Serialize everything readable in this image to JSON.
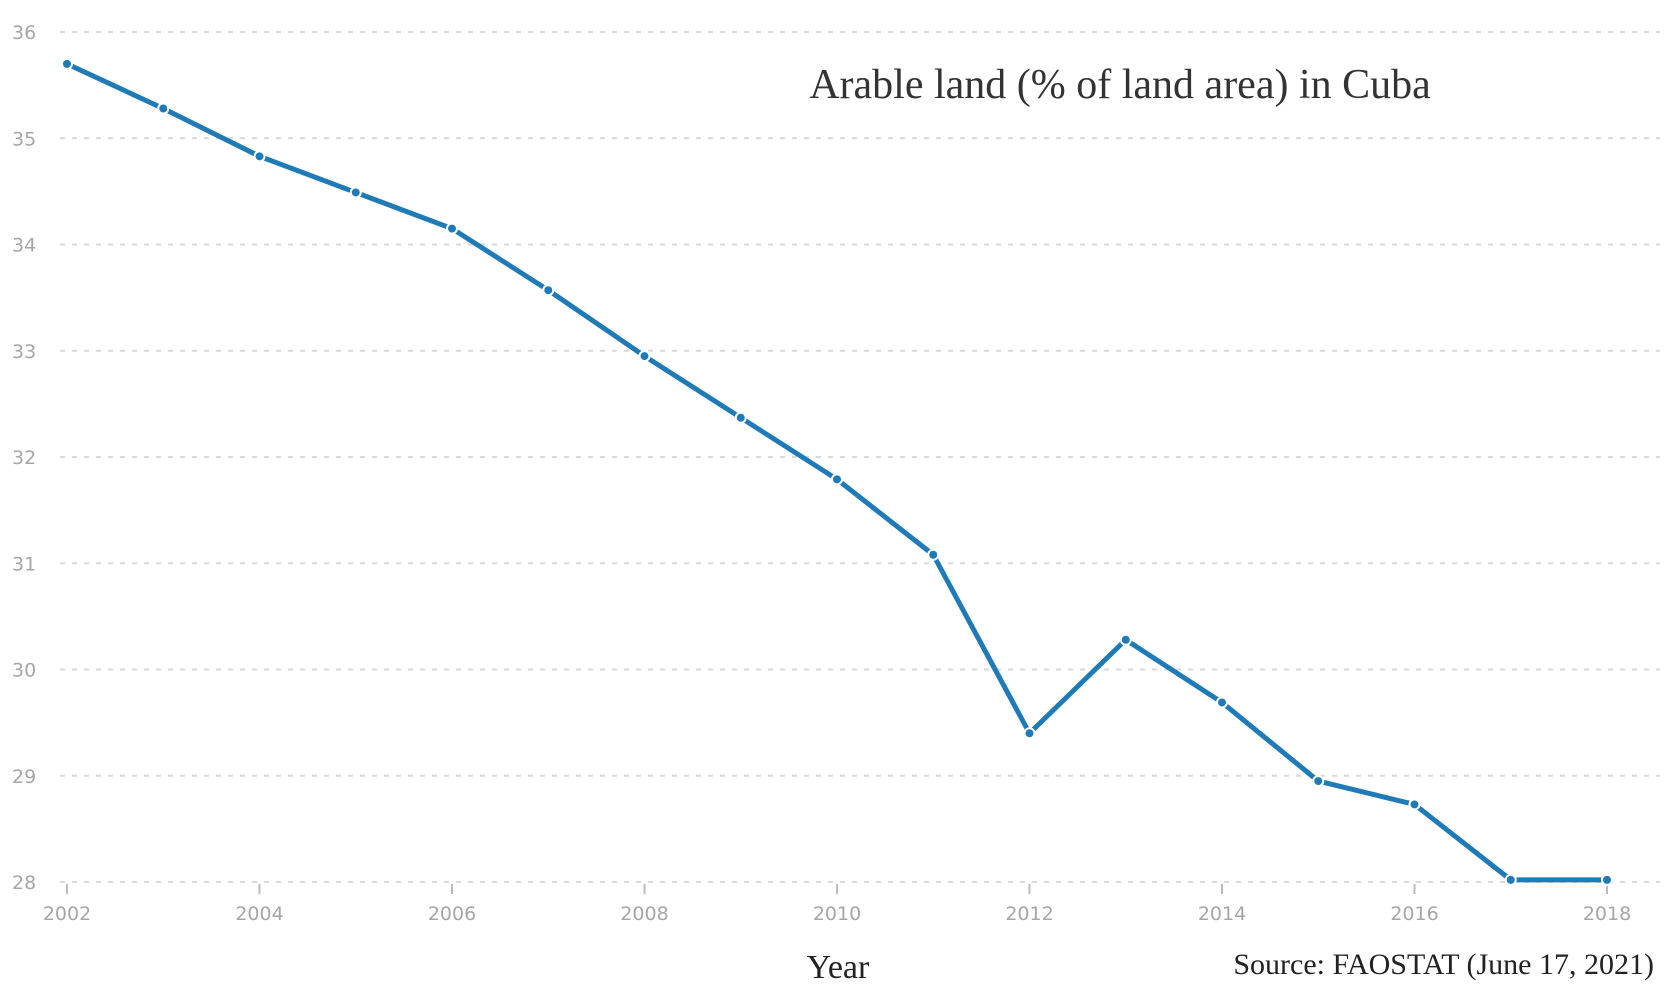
{
  "chart_data": {
    "type": "line",
    "title": "Arable land (% of land area) in Cuba",
    "xlabel": "Year",
    "ylabel": "",
    "source": "Source: FAOSTAT (June 17, 2021)",
    "x": [
      2002,
      2003,
      2004,
      2005,
      2006,
      2007,
      2008,
      2009,
      2010,
      2011,
      2012,
      2013,
      2014,
      2015,
      2016,
      2017,
      2018
    ],
    "values": [
      35.7,
      35.28,
      34.83,
      34.49,
      34.15,
      33.57,
      32.95,
      32.37,
      31.79,
      31.08,
      29.4,
      30.28,
      29.69,
      28.95,
      28.73,
      28.02,
      28.02
    ],
    "xlim": [
      2002,
      2018
    ],
    "ylim": [
      28,
      36
    ],
    "xticks": [
      "2002",
      "2004",
      "2006",
      "2008",
      "2010",
      "2012",
      "2014",
      "2016",
      "2018"
    ],
    "yticks": [
      "28",
      "29",
      "30",
      "31",
      "32",
      "33",
      "34",
      "35",
      "36"
    ],
    "grid": true,
    "line_color": "#1f7ab8",
    "grid_color": "#d9d9d9"
  }
}
